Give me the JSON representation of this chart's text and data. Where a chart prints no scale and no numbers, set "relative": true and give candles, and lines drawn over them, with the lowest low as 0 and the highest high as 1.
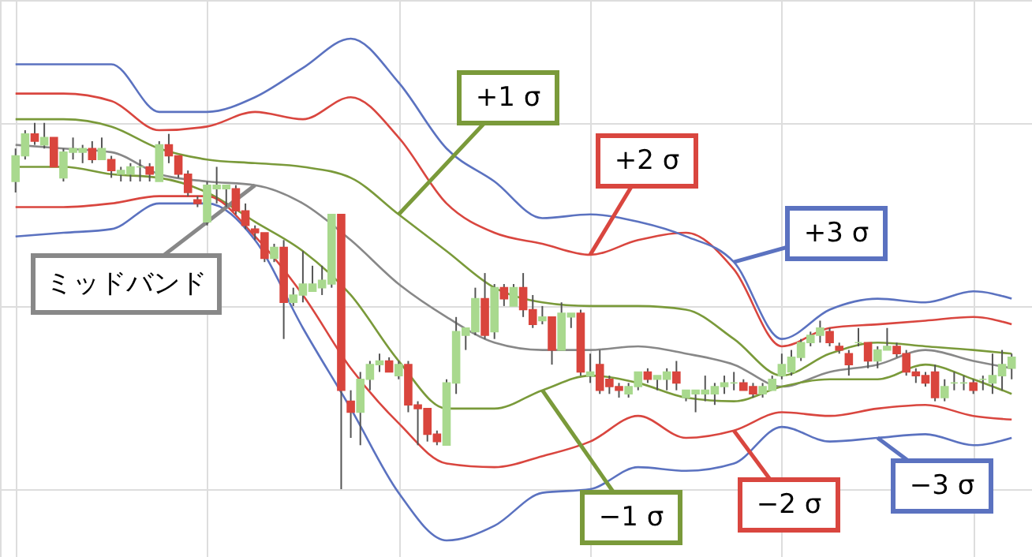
{
  "chart_data": {
    "type": "candlestick",
    "relative": true,
    "grid": true,
    "categories": [
      null,
      null,
      null,
      null,
      null,
      null,
      null,
      null,
      null,
      null,
      null,
      null,
      null,
      null,
      null,
      null,
      null,
      null,
      null,
      null,
      null,
      null,
      null,
      null,
      null,
      null,
      null,
      null,
      null,
      null,
      null,
      null,
      null,
      null,
      null,
      null,
      null,
      null,
      null,
      null,
      null,
      null,
      null,
      null,
      null,
      null,
      null,
      null,
      null,
      null,
      null,
      null,
      null,
      null,
      null,
      null,
      null,
      null,
      null,
      null,
      null,
      null,
      null,
      null,
      null,
      null,
      null,
      null,
      null,
      null,
      null,
      null,
      null,
      null,
      null,
      null,
      null,
      null,
      null,
      null,
      null,
      null,
      null,
      null,
      null,
      null,
      null,
      null,
      null,
      null,
      null,
      null,
      null,
      null,
      null,
      null,
      null,
      null,
      null,
      null,
      null,
      null,
      null,
      null,
      null
    ],
    "ohlc": [
      [
        0.84,
        0.93,
        0.81,
        0.91
      ],
      [
        0.91,
        0.98,
        0.9,
        0.97
      ],
      [
        0.97,
        1.0,
        0.94,
        0.95
      ],
      [
        0.94,
        1.0,
        0.93,
        0.96
      ],
      [
        0.96,
        0.96,
        0.88,
        0.88
      ],
      [
        0.85,
        0.93,
        0.84,
        0.92
      ],
      [
        0.92,
        0.96,
        0.9,
        0.93
      ],
      [
        0.92,
        0.94,
        0.89,
        0.93
      ],
      [
        0.93,
        0.95,
        0.89,
        0.9
      ],
      [
        0.9,
        0.96,
        0.9,
        0.93
      ],
      [
        0.9,
        0.91,
        0.85,
        0.87
      ],
      [
        0.86,
        0.88,
        0.84,
        0.87
      ],
      [
        0.86,
        0.89,
        0.84,
        0.88
      ],
      [
        0.88,
        0.9,
        0.84,
        0.88
      ],
      [
        0.88,
        0.89,
        0.84,
        0.86
      ],
      [
        0.84,
        0.95,
        0.84,
        0.94
      ],
      [
        0.94,
        0.97,
        0.89,
        0.91
      ],
      [
        0.91,
        0.91,
        0.85,
        0.86
      ],
      [
        0.86,
        0.87,
        0.8,
        0.81
      ],
      [
        0.79,
        0.8,
        0.77,
        0.78
      ],
      [
        0.73,
        0.84,
        0.72,
        0.83
      ],
      [
        0.82,
        0.88,
        0.78,
        0.83
      ],
      [
        0.82,
        0.83,
        0.77,
        0.83
      ],
      [
        0.82,
        0.83,
        0.75,
        0.76
      ],
      [
        0.76,
        0.78,
        0.71,
        0.72
      ],
      [
        0.71,
        0.72,
        0.68,
        0.7
      ],
      [
        0.7,
        0.7,
        0.62,
        0.63
      ],
      [
        0.63,
        0.67,
        0.62,
        0.66
      ],
      [
        0.66,
        0.68,
        0.41,
        0.51
      ],
      [
        0.51,
        0.55,
        0.5,
        0.53
      ],
      [
        0.53,
        0.65,
        0.51,
        0.56
      ],
      [
        0.54,
        0.61,
        0.54,
        0.56
      ],
      [
        0.55,
        0.61,
        0.53,
        0.57
      ],
      [
        0.56,
        0.75,
        0.55,
        0.75
      ],
      [
        0.75,
        0.75,
        0.0,
        0.27
      ],
      [
        0.24,
        0.27,
        0.14,
        0.21
      ],
      [
        0.21,
        0.32,
        0.12,
        0.3
      ],
      [
        0.3,
        0.35,
        0.27,
        0.34
      ],
      [
        0.34,
        0.37,
        0.32,
        0.35
      ],
      [
        0.35,
        0.36,
        0.32,
        0.32
      ],
      [
        0.31,
        0.35,
        0.3,
        0.34
      ],
      [
        0.34,
        0.35,
        0.21,
        0.23
      ],
      [
        0.23,
        0.24,
        0.12,
        0.22
      ],
      [
        0.22,
        0.22,
        0.13,
        0.15
      ],
      [
        0.15,
        0.16,
        0.12,
        0.13
      ],
      [
        0.12,
        0.3,
        0.12,
        0.29
      ],
      [
        0.29,
        0.47,
        0.26,
        0.43
      ],
      [
        0.42,
        0.44,
        0.38,
        0.44
      ],
      [
        0.43,
        0.55,
        0.42,
        0.52
      ],
      [
        0.52,
        0.59,
        0.41,
        0.42
      ],
      [
        0.43,
        0.56,
        0.41,
        0.55
      ],
      [
        0.55,
        0.56,
        0.5,
        0.52
      ],
      [
        0.5,
        0.56,
        0.5,
        0.55
      ],
      [
        0.55,
        0.59,
        0.47,
        0.49
      ],
      [
        0.49,
        0.53,
        0.44,
        0.45
      ],
      [
        0.46,
        0.5,
        0.45,
        0.47
      ],
      [
        0.47,
        0.47,
        0.34,
        0.38
      ],
      [
        0.38,
        0.51,
        0.38,
        0.48
      ],
      [
        0.47,
        0.48,
        0.44,
        0.48
      ],
      [
        0.48,
        0.49,
        0.31,
        0.32
      ],
      [
        0.31,
        0.37,
        0.29,
        0.32
      ],
      [
        0.34,
        0.38,
        0.26,
        0.27
      ],
      [
        0.3,
        0.31,
        0.26,
        0.28
      ],
      [
        0.28,
        0.29,
        0.25,
        0.27
      ],
      [
        0.26,
        0.29,
        0.25,
        0.28
      ],
      [
        0.28,
        0.32,
        0.27,
        0.32
      ],
      [
        0.32,
        0.33,
        0.29,
        0.3
      ],
      [
        0.3,
        0.31,
        0.27,
        0.31
      ],
      [
        0.3,
        0.33,
        0.27,
        0.32
      ],
      [
        0.32,
        0.35,
        0.27,
        0.29
      ],
      [
        0.25,
        0.27,
        0.24,
        0.27
      ],
      [
        0.26,
        0.27,
        0.21,
        0.27
      ],
      [
        0.26,
        0.31,
        0.24,
        0.27
      ],
      [
        0.26,
        0.29,
        0.23,
        0.28
      ],
      [
        0.28,
        0.31,
        0.26,
        0.29
      ],
      [
        0.29,
        0.32,
        0.27,
        0.29
      ],
      [
        0.29,
        0.3,
        0.27,
        0.27
      ],
      [
        0.28,
        0.29,
        0.25,
        0.26
      ],
      [
        0.26,
        0.29,
        0.25,
        0.28
      ],
      [
        0.27,
        0.31,
        0.27,
        0.3
      ],
      [
        0.31,
        0.37,
        0.3,
        0.34
      ],
      [
        0.32,
        0.38,
        0.31,
        0.36
      ],
      [
        0.36,
        0.41,
        0.35,
        0.4
      ],
      [
        0.4,
        0.43,
        0.39,
        0.42
      ],
      [
        0.42,
        0.46,
        0.4,
        0.44
      ],
      [
        0.43,
        0.44,
        0.39,
        0.4
      ],
      [
        0.39,
        0.4,
        0.37,
        0.38
      ],
      [
        0.37,
        0.38,
        0.31,
        0.34
      ],
      [
        0.4,
        0.44,
        0.39,
        0.4
      ],
      [
        0.4,
        0.4,
        0.33,
        0.35
      ],
      [
        0.35,
        0.39,
        0.33,
        0.38
      ],
      [
        0.38,
        0.44,
        0.38,
        0.39
      ],
      [
        0.39,
        0.4,
        0.36,
        0.37
      ],
      [
        0.37,
        0.38,
        0.31,
        0.32
      ],
      [
        0.32,
        0.33,
        0.29,
        0.31
      ],
      [
        0.31,
        0.32,
        0.28,
        0.29
      ],
      [
        0.32,
        0.34,
        0.24,
        0.25
      ],
      [
        0.25,
        0.3,
        0.24,
        0.28
      ],
      [
        0.29,
        0.32,
        0.27,
        0.29
      ],
      [
        0.29,
        0.31,
        0.27,
        0.29
      ],
      [
        0.29,
        0.3,
        0.26,
        0.27
      ],
      [
        0.3,
        0.31,
        0.27,
        0.3
      ],
      [
        0.29,
        0.37,
        0.26,
        0.31
      ],
      [
        0.31,
        0.38,
        0.27,
        0.34
      ],
      [
        0.33,
        0.37,
        0.3,
        0.36
      ]
    ],
    "colors": [
      "#a9d98e",
      "#a9d98e",
      "#d9453d",
      "#a9d98e",
      "#d9453d",
      "#a9d98e",
      "#a9d98e",
      "#a9d98e",
      "#d9453d",
      "#a9d98e",
      "#d9453d",
      "#a9d98e",
      "#a9d98e",
      "#a9d98e",
      "#d9453d",
      "#a9d98e",
      "#d9453d",
      "#d9453d",
      "#d9453d",
      "#d9453d",
      "#a9d98e",
      "#a9d98e",
      "#a9d98e",
      "#d9453d",
      "#d9453d",
      "#d9453d",
      "#d9453d",
      "#a9d98e",
      "#d9453d",
      "#a9d98e",
      "#a9d98e",
      "#a9d98e",
      "#a9d98e",
      "#a9d98e",
      "#d9453d",
      "#d9453d",
      "#a9d98e",
      "#a9d98e",
      "#a9d98e",
      "#d9453d",
      "#a9d98e",
      "#d9453d",
      "#d9453d",
      "#d9453d",
      "#d9453d",
      "#a9d98e",
      "#a9d98e",
      "#a9d98e",
      "#a9d98e",
      "#d9453d",
      "#a9d98e",
      "#d9453d",
      "#a9d98e",
      "#d9453d",
      "#d9453d",
      "#a9d98e",
      "#d9453d",
      "#a9d98e",
      "#a9d98e",
      "#d9453d",
      "#a9d98e",
      "#d9453d",
      "#d9453d",
      "#d9453d",
      "#a9d98e",
      "#a9d98e",
      "#d9453d",
      "#a9d98e",
      "#a9d98e",
      "#d9453d",
      "#a9d98e",
      "#a9d98e",
      "#a9d98e",
      "#a9d98e",
      "#a9d98e",
      "#a9d98e",
      "#d9453d",
      "#d9453d",
      "#a9d98e",
      "#a9d98e",
      "#a9d98e",
      "#a9d98e",
      "#a9d98e",
      "#a9d98e",
      "#a9d98e",
      "#d9453d",
      "#d9453d",
      "#d9453d",
      "#a9d98e",
      "#d9453d",
      "#a9d98e",
      "#a9d98e",
      "#d9453d",
      "#d9453d",
      "#d9453d",
      "#d9453d",
      "#d9453d",
      "#a9d98e",
      "#a9d98e",
      "#a9d98e",
      "#d9453d",
      "#a9d98e",
      "#a9d98e",
      "#a9d98e",
      "#a9d98e"
    ],
    "series": [
      {
        "type": "line",
        "name": "ミッドバンド",
        "color": "#888888",
        "values": [
          0.94,
          null,
          null,
          null,
          null,
          0.93,
          null,
          null,
          null,
          null,
          0.92,
          null,
          null,
          null,
          null,
          0.86,
          null,
          null,
          null,
          null,
          0.84,
          null,
          null,
          null,
          null,
          0.83,
          null,
          null,
          null,
          null,
          0.78,
          null,
          null,
          null,
          null,
          0.68,
          null,
          null,
          null,
          null,
          0.56,
          null,
          null,
          null,
          null,
          0.47,
          null,
          null,
          null,
          null,
          0.4,
          null,
          null,
          null,
          null,
          0.38,
          null,
          null,
          null,
          null,
          0.38,
          null,
          null,
          null,
          null,
          0.39,
          null,
          null,
          null,
          null,
          0.37,
          null,
          null,
          null,
          null,
          0.34,
          null,
          null,
          null,
          null,
          0.28,
          null,
          null,
          null,
          null,
          0.32,
          null,
          null,
          null,
          null,
          0.34,
          null,
          null,
          null,
          null,
          0.38,
          null,
          null,
          null,
          null,
          0.35,
          null,
          null,
          null,
          0.33
        ]
      },
      {
        "type": "line",
        "name": "+1 σ",
        "color": "#7a9a3a",
        "values": [
          1.01,
          null,
          null,
          null,
          null,
          1.01,
          null,
          null,
          null,
          null,
          0.99,
          null,
          null,
          null,
          null,
          0.93,
          null,
          null,
          null,
          null,
          0.9,
          null,
          null,
          null,
          null,
          0.89,
          null,
          null,
          null,
          null,
          0.88,
          null,
          null,
          null,
          null,
          0.85,
          null,
          null,
          null,
          null,
          0.75,
          null,
          null,
          null,
          null,
          0.65,
          null,
          null,
          null,
          null,
          0.55,
          null,
          null,
          null,
          null,
          0.51,
          null,
          null,
          null,
          null,
          0.5,
          null,
          null,
          null,
          null,
          0.5,
          null,
          null,
          null,
          null,
          0.49,
          null,
          null,
          null,
          null,
          0.41,
          null,
          null,
          null,
          null,
          0.31,
          null,
          null,
          null,
          null,
          0.37,
          null,
          null,
          null,
          null,
          0.4,
          null,
          null,
          null,
          null,
          0.39,
          null,
          null,
          null,
          null,
          0.38,
          null,
          null,
          null,
          0.37
        ]
      },
      {
        "type": "line",
        "name": "+2 σ",
        "color": "#d9463f",
        "values": [
          1.08,
          null,
          null,
          null,
          null,
          1.08,
          null,
          null,
          null,
          null,
          1.06,
          null,
          null,
          null,
          null,
          0.98,
          null,
          null,
          null,
          null,
          0.99,
          null,
          null,
          null,
          null,
          1.03,
          null,
          null,
          null,
          null,
          1.01,
          null,
          null,
          null,
          null,
          1.07,
          null,
          null,
          null,
          null,
          0.96,
          null,
          null,
          null,
          null,
          0.78,
          null,
          null,
          null,
          null,
          0.7,
          null,
          null,
          null,
          null,
          0.67,
          null,
          null,
          null,
          null,
          0.64,
          null,
          null,
          null,
          null,
          0.68,
          null,
          null,
          null,
          null,
          0.7,
          null,
          null,
          null,
          null,
          0.6,
          null,
          null,
          null,
          null,
          0.39,
          null,
          null,
          null,
          null,
          0.44,
          null,
          null,
          null,
          null,
          0.45,
          null,
          null,
          null,
          null,
          0.46,
          null,
          null,
          null,
          null,
          0.47,
          null,
          null,
          null,
          0.45
        ]
      },
      {
        "type": "line",
        "name": "+3 σ",
        "color": "#5b72c0",
        "values": [
          1.16,
          null,
          null,
          null,
          null,
          1.16,
          null,
          null,
          null,
          null,
          1.16,
          null,
          null,
          null,
          null,
          1.03,
          null,
          null,
          null,
          null,
          1.03,
          null,
          null,
          null,
          null,
          1.07,
          null,
          null,
          null,
          null,
          1.15,
          null,
          null,
          null,
          null,
          1.23,
          null,
          null,
          null,
          null,
          1.11,
          null,
          null,
          null,
          null,
          0.93,
          null,
          null,
          null,
          null,
          0.84,
          null,
          null,
          null,
          null,
          0.74,
          null,
          null,
          null,
          null,
          0.75,
          null,
          null,
          null,
          null,
          0.73,
          null,
          null,
          null,
          null,
          0.69,
          null,
          null,
          null,
          null,
          0.62,
          null,
          null,
          null,
          null,
          0.41,
          null,
          null,
          null,
          null,
          0.49,
          null,
          null,
          null,
          null,
          0.52,
          null,
          null,
          null,
          null,
          0.51,
          null,
          null,
          null,
          null,
          0.54,
          null,
          null,
          null,
          0.52
        ]
      },
      {
        "type": "line",
        "name": "−1 σ",
        "color": "#7a9a3a",
        "values": [
          0.88,
          null,
          null,
          null,
          null,
          0.88,
          null,
          null,
          null,
          null,
          0.86,
          null,
          null,
          null,
          null,
          0.85,
          null,
          null,
          null,
          null,
          0.81,
          null,
          null,
          null,
          null,
          0.73,
          null,
          null,
          null,
          null,
          0.65,
          null,
          null,
          null,
          null,
          0.53,
          null,
          null,
          null,
          null,
          0.35,
          null,
          null,
          null,
          null,
          0.22,
          null,
          null,
          null,
          null,
          0.22,
          null,
          null,
          null,
          null,
          0.27,
          null,
          null,
          null,
          null,
          0.31,
          null,
          null,
          null,
          null,
          0.29,
          null,
          null,
          null,
          null,
          0.25,
          null,
          null,
          null,
          null,
          0.24,
          null,
          null,
          null,
          null,
          0.28,
          null,
          null,
          null,
          null,
          0.3,
          null,
          null,
          null,
          null,
          0.3,
          null,
          null,
          null,
          null,
          0.34,
          null,
          null,
          null,
          null,
          0.3,
          null,
          null,
          null,
          0.26
        ]
      },
      {
        "type": "line",
        "name": "−2 σ",
        "color": "#d9463f",
        "values": [
          0.77,
          null,
          null,
          null,
          null,
          0.77,
          null,
          null,
          null,
          null,
          0.78,
          null,
          null,
          null,
          null,
          0.8,
          null,
          null,
          null,
          null,
          0.8,
          null,
          null,
          null,
          null,
          0.69,
          null,
          null,
          null,
          null,
          0.53,
          null,
          null,
          null,
          null,
          0.33,
          null,
          null,
          null,
          null,
          0.18,
          null,
          null,
          null,
          null,
          0.07,
          null,
          null,
          null,
          null,
          0.06,
          null,
          null,
          null,
          null,
          0.09,
          null,
          null,
          null,
          null,
          0.13,
          null,
          null,
          null,
          null,
          0.2,
          null,
          null,
          null,
          null,
          0.14,
          null,
          null,
          null,
          null,
          0.16,
          null,
          null,
          null,
          null,
          0.21,
          null,
          null,
          null,
          null,
          0.2,
          null,
          null,
          null,
          null,
          0.22,
          null,
          null,
          null,
          null,
          0.23,
          null,
          null,
          null,
          null,
          0.2,
          null,
          null,
          null,
          0.19
        ]
      },
      {
        "type": "line",
        "name": "−3 σ",
        "color": "#5b72c0",
        "values": [
          0.69,
          null,
          null,
          null,
          null,
          0.7,
          null,
          null,
          null,
          null,
          0.71,
          null,
          null,
          null,
          null,
          0.78,
          null,
          null,
          null,
          null,
          0.78,
          null,
          null,
          null,
          null,
          0.68,
          null,
          null,
          null,
          null,
          0.44,
          null,
          null,
          null,
          null,
          0.22,
          null,
          null,
          null,
          null,
          -0.01,
          null,
          null,
          null,
          null,
          -0.14,
          null,
          null,
          null,
          null,
          -0.1,
          null,
          null,
          null,
          null,
          -0.01,
          null,
          null,
          null,
          null,
          0.0,
          null,
          null,
          null,
          null,
          0.06,
          null,
          null,
          null,
          null,
          0.05,
          null,
          null,
          null,
          null,
          0.07,
          null,
          null,
          null,
          null,
          0.17,
          null,
          null,
          null,
          null,
          0.13,
          null,
          null,
          null,
          null,
          0.14,
          null,
          null,
          null,
          null,
          0.15,
          null,
          null,
          null,
          null,
          0.12,
          null,
          null,
          null,
          0.14
        ]
      }
    ]
  }
}
